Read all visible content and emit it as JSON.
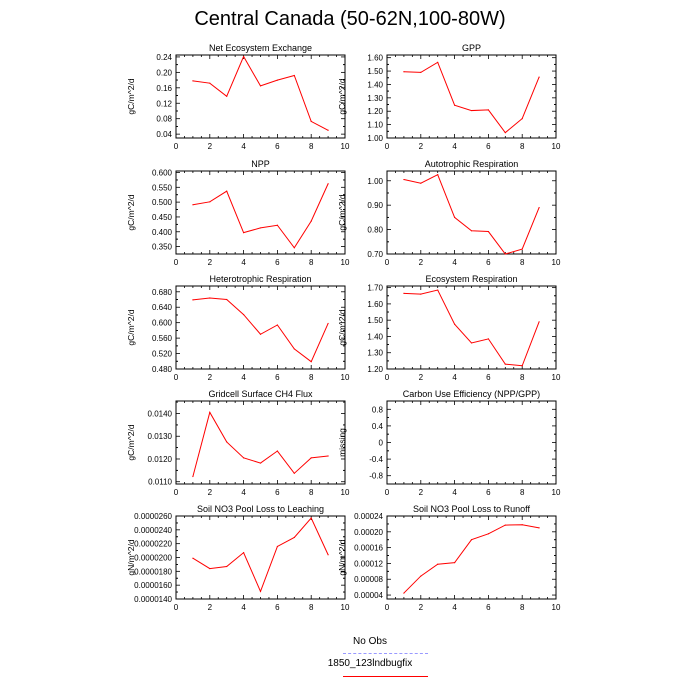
{
  "figure": {
    "title": "Central Canada (50-62N,100-80W)"
  },
  "legend": {
    "items": [
      {
        "label": "No Obs",
        "color": "#9999ff",
        "style": "dashed"
      },
      {
        "label": "1850_123lndbugfix",
        "color": "#ff0000",
        "style": "solid"
      }
    ]
  },
  "chart_data": [
    {
      "type": "line",
      "title": "Net Ecosystem Exchange",
      "ylabel": "gC/m^2/d",
      "xlim": [
        0,
        10
      ],
      "ylim": [
        0.03,
        0.245
      ],
      "xticks": [
        0,
        2,
        4,
        6,
        8,
        10
      ],
      "yticks": [
        0.04,
        0.08,
        0.12,
        0.16,
        0.2,
        0.24
      ],
      "ytick_labels": [
        "0.04",
        "0.08",
        "0.12",
        "0.16",
        "0.20",
        "0.24"
      ],
      "x": [
        1,
        2,
        3,
        4,
        5,
        6,
        7,
        8,
        9
      ],
      "series": [
        {
          "name": "1850_123lndbugfix",
          "color": "#ff0000",
          "values": [
            0.178,
            0.172,
            0.138,
            0.241,
            0.165,
            0.18,
            0.192,
            0.073,
            0.05
          ]
        }
      ]
    },
    {
      "type": "line",
      "title": "GPP",
      "ylabel": "gC/m^2/d",
      "xlim": [
        0,
        10
      ],
      "ylim": [
        1.0,
        1.62
      ],
      "xticks": [
        0,
        2,
        4,
        6,
        8,
        10
      ],
      "yticks": [
        1.0,
        1.1,
        1.2,
        1.3,
        1.4,
        1.5,
        1.6
      ],
      "ytick_labels": [
        "1.00",
        "1.10",
        "1.20",
        "1.30",
        "1.40",
        "1.50",
        "1.60"
      ],
      "x": [
        1,
        2,
        3,
        4,
        5,
        6,
        7,
        8,
        9
      ],
      "series": [
        {
          "name": "1850_123lndbugfix",
          "color": "#ff0000",
          "values": [
            1.495,
            1.49,
            1.565,
            1.245,
            1.205,
            1.21,
            1.04,
            1.145,
            1.455
          ]
        }
      ]
    },
    {
      "type": "line",
      "title": "NPP",
      "ylabel": "gC/m^2/d",
      "xlim": [
        0,
        10
      ],
      "ylim": [
        0.325,
        0.605
      ],
      "xticks": [
        0,
        2,
        4,
        6,
        8,
        10
      ],
      "yticks": [
        0.35,
        0.4,
        0.45,
        0.5,
        0.55,
        0.6
      ],
      "ytick_labels": [
        "0.350",
        "0.400",
        "0.450",
        "0.500",
        "0.550",
        "0.600"
      ],
      "x": [
        1,
        2,
        3,
        4,
        5,
        6,
        7,
        8,
        9
      ],
      "series": [
        {
          "name": "1850_123lndbugfix",
          "color": "#ff0000",
          "values": [
            0.491,
            0.501,
            0.537,
            0.397,
            0.413,
            0.422,
            0.346,
            0.436,
            0.562
          ]
        }
      ]
    },
    {
      "type": "line",
      "title": "Autotrophic Respiration",
      "ylabel": "gC/m^2/d",
      "xlim": [
        0,
        10
      ],
      "ylim": [
        0.7,
        1.04
      ],
      "xticks": [
        0,
        2,
        4,
        6,
        8,
        10
      ],
      "yticks": [
        0.7,
        0.8,
        0.9,
        1.0
      ],
      "ytick_labels": [
        "0.70",
        "0.80",
        "0.90",
        "1.00"
      ],
      "x": [
        1,
        2,
        3,
        4,
        5,
        6,
        7,
        8,
        9
      ],
      "series": [
        {
          "name": "1850_123lndbugfix",
          "color": "#ff0000",
          "values": [
            1.005,
            0.99,
            1.025,
            0.85,
            0.795,
            0.792,
            0.7,
            0.72,
            0.89
          ]
        }
      ]
    },
    {
      "type": "line",
      "title": "Heterotrophic Respiration",
      "ylabel": "gC/m^2/d",
      "xlim": [
        0,
        10
      ],
      "ylim": [
        0.48,
        0.695
      ],
      "xticks": [
        0,
        2,
        4,
        6,
        8,
        10
      ],
      "yticks": [
        0.48,
        0.52,
        0.56,
        0.6,
        0.64,
        0.68
      ],
      "ytick_labels": [
        "0.480",
        "0.520",
        "0.560",
        "0.600",
        "0.640",
        "0.680"
      ],
      "x": [
        1,
        2,
        3,
        4,
        5,
        6,
        7,
        8,
        9
      ],
      "series": [
        {
          "name": "1850_123lndbugfix",
          "color": "#ff0000",
          "values": [
            0.659,
            0.664,
            0.66,
            0.621,
            0.57,
            0.594,
            0.532,
            0.499,
            0.598
          ]
        }
      ]
    },
    {
      "type": "line",
      "title": "Ecosystem Respiration",
      "ylabel": "gC/m^2/d",
      "xlim": [
        0,
        10
      ],
      "ylim": [
        1.2,
        1.71
      ],
      "xticks": [
        0,
        2,
        4,
        6,
        8,
        10
      ],
      "yticks": [
        1.2,
        1.3,
        1.4,
        1.5,
        1.6,
        1.7
      ],
      "ytick_labels": [
        "1.20",
        "1.30",
        "1.40",
        "1.50",
        "1.60",
        "1.70"
      ],
      "x": [
        1,
        2,
        3,
        4,
        5,
        6,
        7,
        8,
        9
      ],
      "series": [
        {
          "name": "1850_123lndbugfix",
          "color": "#ff0000",
          "values": [
            1.665,
            1.66,
            1.685,
            1.475,
            1.36,
            1.385,
            1.23,
            1.22,
            1.49
          ]
        }
      ]
    },
    {
      "type": "line",
      "title": "Gridcell Surface CH4 Flux",
      "ylabel": "gC/m^2/d",
      "xlim": [
        0,
        10
      ],
      "ylim": [
        0.0109,
        0.01455
      ],
      "xticks": [
        0,
        2,
        4,
        6,
        8,
        10
      ],
      "yticks": [
        0.011,
        0.012,
        0.013,
        0.014
      ],
      "ytick_labels": [
        "0.0110",
        "0.0120",
        "0.0130",
        "0.0140"
      ],
      "x": [
        1,
        2,
        3,
        4,
        5,
        6,
        7,
        8,
        9
      ],
      "series": [
        {
          "name": "1850_123lndbugfix",
          "color": "#ff0000",
          "values": [
            0.01123,
            0.01405,
            0.01275,
            0.01205,
            0.01182,
            0.01235,
            0.01137,
            0.01205,
            0.01213
          ]
        }
      ]
    },
    {
      "type": "line",
      "title": "Carbon Use Efficiency (NPP/GPP)",
      "ylabel": "missing",
      "xlim": [
        0,
        10
      ],
      "ylim": [
        -1.0,
        1.0
      ],
      "xticks": [
        0,
        2,
        4,
        6,
        8,
        10
      ],
      "yticks": [
        -0.8,
        -0.4,
        0.0,
        0.4,
        0.8
      ],
      "ytick_labels": [
        "-0.8",
        "-0.4",
        "0",
        "0.4",
        "0.8"
      ],
      "x": [],
      "series": []
    },
    {
      "type": "line",
      "title": "Soil NO3 Pool Loss to Leaching",
      "ylabel": "gN/m^2/d",
      "xlim": [
        0,
        10
      ],
      "ylim": [
        1.4e-05,
        2.6e-05
      ],
      "xticks": [
        0,
        2,
        4,
        6,
        8,
        10
      ],
      "yticks": [
        1.4e-05,
        1.6e-05,
        1.8e-05,
        2e-05,
        2.2e-05,
        2.4e-05,
        2.6e-05
      ],
      "ytick_labels": [
        "0.0000140",
        "0.0000160",
        "0.0000180",
        "0.0000200",
        "0.0000220",
        "0.0000240",
        "0.0000260"
      ],
      "x": [
        1,
        2,
        3,
        4,
        5,
        6,
        7,
        8,
        9
      ],
      "series": [
        {
          "name": "1850_123lndbugfix",
          "color": "#ff0000",
          "values": [
            1.99e-05,
            1.84e-05,
            1.87e-05,
            2.07e-05,
            1.51e-05,
            2.16e-05,
            2.29e-05,
            2.57e-05,
            2.04e-05
          ]
        }
      ]
    },
    {
      "type": "line",
      "title": "Soil NO3 Pool Loss to Runoff",
      "ylabel": "gN/m^2/d",
      "xlim": [
        0,
        10
      ],
      "ylim": [
        3e-05,
        0.00024
      ],
      "xticks": [
        0,
        2,
        4,
        6,
        8,
        10
      ],
      "yticks": [
        4e-05,
        8e-05,
        0.00012,
        0.00016,
        0.0002,
        0.00024
      ],
      "ytick_labels": [
        "0.00004",
        "0.00008",
        "0.00012",
        "0.00016",
        "0.00020",
        "0.00024"
      ],
      "x": [
        1,
        2,
        3,
        4,
        5,
        6,
        7,
        8,
        9
      ],
      "series": [
        {
          "name": "1850_123lndbugfix",
          "color": "#ff0000",
          "values": [
            4.5e-05,
            8.8e-05,
            0.000118,
            0.000122,
            0.00018,
            0.000195,
            0.000217,
            0.000218,
            0.00021
          ]
        }
      ]
    }
  ]
}
